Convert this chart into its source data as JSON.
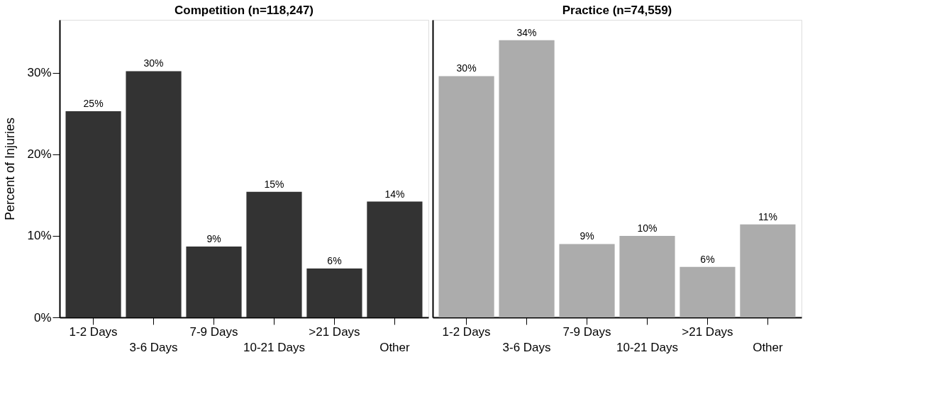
{
  "chart_data": [
    {
      "type": "bar",
      "title": "Competition (n=118,247)",
      "ylabel": "Percent of Injuries",
      "categories": [
        "1-2 Days",
        "3-6 Days",
        "7-9 Days",
        "10-21 Days",
        ">21 Days",
        "Other"
      ],
      "series": [
        {
          "color": "#333333",
          "values": [
            25.3,
            30.2,
            8.7,
            15.4,
            6.0,
            14.2
          ],
          "value_labels": [
            "25%",
            "30%",
            "9%",
            "15%",
            "6%",
            "14%"
          ]
        }
      ],
      "ylim": [
        0,
        36.5
      ],
      "yticks": [
        {
          "value": 0,
          "label": "0%"
        },
        {
          "value": 10,
          "label": "10%"
        },
        {
          "value": 20,
          "label": "20%"
        },
        {
          "value": 30,
          "label": "30%"
        }
      ],
      "grid": false
    },
    {
      "type": "bar",
      "title": "Practice (n=74,559)",
      "categories": [
        "1-2 Days",
        "3-6 Days",
        "7-9 Days",
        "10-21 Days",
        ">21 Days",
        "Other"
      ],
      "series": [
        {
          "color": "#acacac",
          "values": [
            29.6,
            34.0,
            9.0,
            10.0,
            6.2,
            11.4
          ],
          "value_labels": [
            "30%",
            "34%",
            "9%",
            "10%",
            "6%",
            "11%"
          ]
        }
      ],
      "ylim": [
        0,
        36.5
      ],
      "tick_labels": "x",
      "grid": false
    }
  ]
}
